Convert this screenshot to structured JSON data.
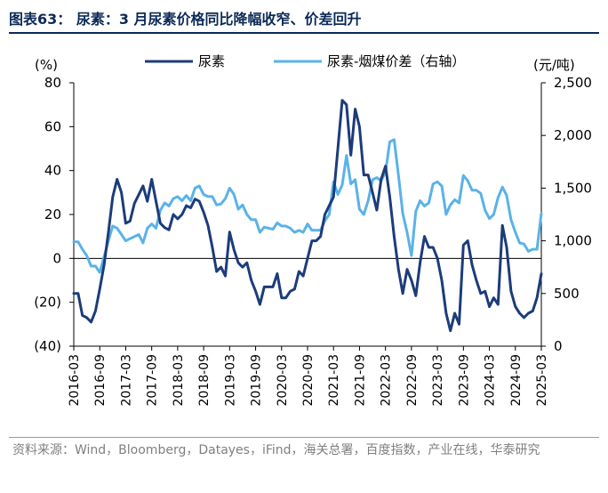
{
  "header": {
    "title": "图表63： 尿素：3 月尿素价格同比降幅收窄、价差回升"
  },
  "footer": {
    "source": "资料来源：Wind，Bloomberg，Datayes，iFind，海关总署，百度指数，产业在线，华泰研究"
  },
  "chart_data": {
    "type": "line",
    "left_unit": "(%)",
    "right_unit": "(元/吨)",
    "left_ticks": [
      "80",
      "60",
      "40",
      "20",
      "0",
      "(20)",
      "(40)"
    ],
    "right_ticks": [
      "2,500",
      "2,000",
      "1,500",
      "1,000",
      "500",
      "0"
    ],
    "left_range": [
      -40,
      80
    ],
    "right_range": [
      0,
      2500
    ],
    "x_range": [
      "2016-03",
      "2025-03"
    ],
    "x_ticks": [
      "2016-03",
      "2016-09",
      "2017-03",
      "2017-09",
      "2018-03",
      "2018-09",
      "2019-03",
      "2019-09",
      "2020-03",
      "2020-09",
      "2021-03",
      "2021-09",
      "2022-03",
      "2022-09",
      "2023-03",
      "2023-09",
      "2024-03",
      "2024-09",
      "2025-03"
    ],
    "legend_position": "top",
    "grid": false,
    "series": [
      {
        "name": "尿素",
        "axis": "left",
        "color": "#1c3c7a",
        "points": [
          [
            "2016-03",
            -16
          ],
          [
            "2016-04",
            -16
          ],
          [
            "2016-05",
            -26
          ],
          [
            "2016-06",
            -27
          ],
          [
            "2016-07",
            -29
          ],
          [
            "2016-08",
            -24
          ],
          [
            "2016-09",
            -14
          ],
          [
            "2016-10",
            -3
          ],
          [
            "2016-11",
            12
          ],
          [
            "2016-12",
            28
          ],
          [
            "2017-01",
            36
          ],
          [
            "2017-02",
            30
          ],
          [
            "2017-03",
            16
          ],
          [
            "2017-04",
            17
          ],
          [
            "2017-05",
            25
          ],
          [
            "2017-06",
            29
          ],
          [
            "2017-07",
            33
          ],
          [
            "2017-08",
            26
          ],
          [
            "2017-09",
            36
          ],
          [
            "2017-10",
            26
          ],
          [
            "2017-11",
            16
          ],
          [
            "2017-12",
            14
          ],
          [
            "2018-01",
            13
          ],
          [
            "2018-02",
            20
          ],
          [
            "2018-03",
            18
          ],
          [
            "2018-04",
            20
          ],
          [
            "2018-05",
            24
          ],
          [
            "2018-06",
            23
          ],
          [
            "2018-07",
            27
          ],
          [
            "2018-08",
            26
          ],
          [
            "2018-09",
            21
          ],
          [
            "2018-10",
            15
          ],
          [
            "2018-11",
            5
          ],
          [
            "2018-12",
            -6
          ],
          [
            "2019-01",
            -4
          ],
          [
            "2019-02",
            -8
          ],
          [
            "2019-03",
            12
          ],
          [
            "2019-04",
            4
          ],
          [
            "2019-05",
            -2
          ],
          [
            "2019-06",
            -4
          ],
          [
            "2019-07",
            -2
          ],
          [
            "2019-08",
            -10
          ],
          [
            "2019-09",
            -15
          ],
          [
            "2019-10",
            -21
          ],
          [
            "2019-11",
            -13
          ],
          [
            "2019-12",
            -13
          ],
          [
            "2020-01",
            -13
          ],
          [
            "2020-02",
            -7
          ],
          [
            "2020-03",
            -18
          ],
          [
            "2020-04",
            -18
          ],
          [
            "2020-05",
            -15
          ],
          [
            "2020-06",
            -14
          ],
          [
            "2020-07",
            -6
          ],
          [
            "2020-08",
            -8
          ],
          [
            "2020-09",
            0
          ],
          [
            "2020-10",
            8
          ],
          [
            "2020-11",
            8
          ],
          [
            "2020-12",
            10
          ],
          [
            "2021-01",
            20
          ],
          [
            "2021-02",
            24
          ],
          [
            "2021-03",
            28
          ],
          [
            "2021-04",
            50
          ],
          [
            "2021-05",
            72
          ],
          [
            "2021-06",
            70
          ],
          [
            "2021-07",
            47
          ],
          [
            "2021-08",
            68
          ],
          [
            "2021-09",
            60
          ],
          [
            "2021-10",
            38
          ],
          [
            "2021-11",
            38
          ],
          [
            "2021-12",
            30
          ],
          [
            "2022-01",
            22
          ],
          [
            "2022-02",
            36
          ],
          [
            "2022-03",
            42
          ],
          [
            "2022-04",
            28
          ],
          [
            "2022-05",
            10
          ],
          [
            "2022-06",
            -5
          ],
          [
            "2022-07",
            -16
          ],
          [
            "2022-08",
            -5
          ],
          [
            "2022-09",
            -10
          ],
          [
            "2022-10",
            -17
          ],
          [
            "2022-11",
            -2
          ],
          [
            "2022-12",
            10
          ],
          [
            "2023-01",
            5
          ],
          [
            "2023-02",
            5
          ],
          [
            "2023-03",
            0
          ],
          [
            "2023-04",
            -10
          ],
          [
            "2023-05",
            -25
          ],
          [
            "2023-06",
            -33
          ],
          [
            "2023-07",
            -25
          ],
          [
            "2023-08",
            -30
          ],
          [
            "2023-09",
            6
          ],
          [
            "2023-10",
            8
          ],
          [
            "2023-11",
            -3
          ],
          [
            "2023-12",
            -10
          ],
          [
            "2024-01",
            -16
          ],
          [
            "2024-02",
            -15
          ],
          [
            "2024-03",
            -22
          ],
          [
            "2024-04",
            -18
          ],
          [
            "2024-05",
            -21
          ],
          [
            "2024-06",
            15
          ],
          [
            "2024-07",
            5
          ],
          [
            "2024-08",
            -15
          ],
          [
            "2024-09",
            -22
          ],
          [
            "2024-10",
            -25
          ],
          [
            "2024-11",
            -27
          ],
          [
            "2024-12",
            -25
          ],
          [
            "2025-01",
            -24
          ],
          [
            "2025-02",
            -18
          ],
          [
            "2025-03",
            -7
          ]
        ]
      },
      {
        "name": "尿素-烟煤价差（右轴）",
        "axis": "right",
        "color": "#5bb2e8",
        "points": [
          [
            "2016-03",
            990
          ],
          [
            "2016-04",
            990
          ],
          [
            "2016-05",
            920
          ],
          [
            "2016-06",
            860
          ],
          [
            "2016-07",
            760
          ],
          [
            "2016-08",
            760
          ],
          [
            "2016-09",
            700
          ],
          [
            "2016-10",
            850
          ],
          [
            "2016-11",
            1000
          ],
          [
            "2016-12",
            1140
          ],
          [
            "2017-01",
            1120
          ],
          [
            "2017-02",
            1060
          ],
          [
            "2017-03",
            1000
          ],
          [
            "2017-04",
            1020
          ],
          [
            "2017-05",
            1040
          ],
          [
            "2017-06",
            1060
          ],
          [
            "2017-07",
            980
          ],
          [
            "2017-08",
            1120
          ],
          [
            "2017-09",
            1160
          ],
          [
            "2017-10",
            1120
          ],
          [
            "2017-11",
            1290
          ],
          [
            "2017-12",
            1360
          ],
          [
            "2018-01",
            1330
          ],
          [
            "2018-02",
            1400
          ],
          [
            "2018-03",
            1420
          ],
          [
            "2018-04",
            1380
          ],
          [
            "2018-05",
            1430
          ],
          [
            "2018-06",
            1380
          ],
          [
            "2018-07",
            1500
          ],
          [
            "2018-08",
            1520
          ],
          [
            "2018-09",
            1440
          ],
          [
            "2018-10",
            1420
          ],
          [
            "2018-11",
            1420
          ],
          [
            "2018-12",
            1340
          ],
          [
            "2019-01",
            1350
          ],
          [
            "2019-02",
            1400
          ],
          [
            "2019-03",
            1500
          ],
          [
            "2019-04",
            1440
          ],
          [
            "2019-05",
            1300
          ],
          [
            "2019-06",
            1340
          ],
          [
            "2019-07",
            1250
          ],
          [
            "2019-08",
            1200
          ],
          [
            "2019-09",
            1200
          ],
          [
            "2019-10",
            1080
          ],
          [
            "2019-11",
            1130
          ],
          [
            "2019-12",
            1120
          ],
          [
            "2020-01",
            1110
          ],
          [
            "2020-02",
            1170
          ],
          [
            "2020-03",
            1140
          ],
          [
            "2020-04",
            1140
          ],
          [
            "2020-05",
            1120
          ],
          [
            "2020-06",
            1080
          ],
          [
            "2020-07",
            1100
          ],
          [
            "2020-08",
            1080
          ],
          [
            "2020-09",
            1160
          ],
          [
            "2020-10",
            1100
          ],
          [
            "2020-11",
            1100
          ],
          [
            "2020-12",
            1100
          ],
          [
            "2021-01",
            1190
          ],
          [
            "2021-02",
            1250
          ],
          [
            "2021-03",
            1560
          ],
          [
            "2021-04",
            1440
          ],
          [
            "2021-05",
            1530
          ],
          [
            "2021-06",
            1810
          ],
          [
            "2021-07",
            1540
          ],
          [
            "2021-08",
            1580
          ],
          [
            "2021-09",
            1300
          ],
          [
            "2021-10",
            1250
          ],
          [
            "2021-11",
            1380
          ],
          [
            "2021-12",
            1580
          ],
          [
            "2022-01",
            1600
          ],
          [
            "2022-02",
            1570
          ],
          [
            "2022-03",
            1650
          ],
          [
            "2022-04",
            1940
          ],
          [
            "2022-05",
            1960
          ],
          [
            "2022-06",
            1620
          ],
          [
            "2022-07",
            1260
          ],
          [
            "2022-08",
            1080
          ],
          [
            "2022-09",
            860
          ],
          [
            "2022-10",
            1280
          ],
          [
            "2022-11",
            1380
          ],
          [
            "2022-12",
            1330
          ],
          [
            "2023-01",
            1360
          ],
          [
            "2023-02",
            1540
          ],
          [
            "2023-03",
            1560
          ],
          [
            "2023-04",
            1520
          ],
          [
            "2023-05",
            1250
          ],
          [
            "2023-06",
            1340
          ],
          [
            "2023-07",
            1390
          ],
          [
            "2023-08",
            1360
          ],
          [
            "2023-09",
            1620
          ],
          [
            "2023-10",
            1570
          ],
          [
            "2023-11",
            1480
          ],
          [
            "2023-12",
            1480
          ],
          [
            "2024-01",
            1450
          ],
          [
            "2024-02",
            1290
          ],
          [
            "2024-03",
            1210
          ],
          [
            "2024-04",
            1250
          ],
          [
            "2024-05",
            1410
          ],
          [
            "2024-06",
            1510
          ],
          [
            "2024-07",
            1430
          ],
          [
            "2024-08",
            1200
          ],
          [
            "2024-09",
            1080
          ],
          [
            "2024-10",
            980
          ],
          [
            "2024-11",
            970
          ],
          [
            "2024-12",
            900
          ],
          [
            "2025-01",
            920
          ],
          [
            "2025-02",
            920
          ],
          [
            "2025-03",
            1260
          ]
        ]
      }
    ]
  },
  "colors": {
    "title": "#0b2a57",
    "series_dark": "#1c3c7a",
    "series_light": "#5bb2e8",
    "source_text": "#7f7f7f"
  }
}
